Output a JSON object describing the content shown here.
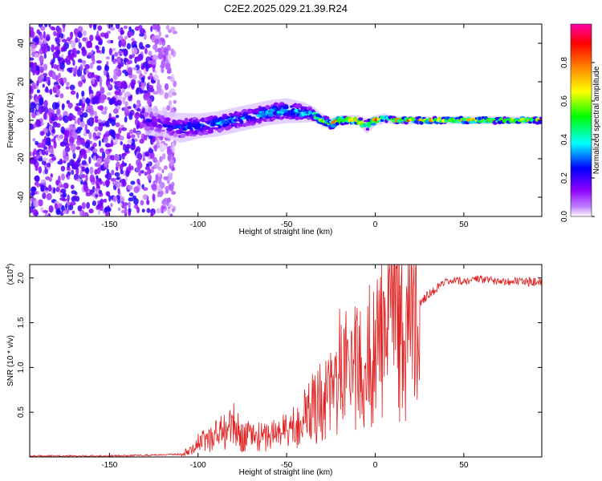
{
  "title": "C2E2.2025.029.21.39.R24",
  "chart_data": [
    {
      "type": "heatmap",
      "xlabel": "Height of straight line (km)",
      "ylabel": "Frequency (Hz)",
      "xlim": [
        -195,
        94
      ],
      "ylim": [
        -50,
        50
      ],
      "x_ticks": [
        -150,
        -100,
        -50,
        0,
        50
      ],
      "x_tick_labels": [
        "-150",
        "-100",
        "-50",
        "0",
        "50"
      ],
      "y_ticks": [
        -40,
        -20,
        0,
        20,
        40
      ],
      "y_tick_labels": [
        "-40",
        "-20",
        "0",
        "20",
        "40"
      ],
      "colorbar": {
        "label": "Normalized spectral amplitude",
        "range": [
          0,
          1
        ],
        "ticks": [
          0.0,
          0.2,
          0.4,
          0.6,
          0.8
        ],
        "tick_labels": [
          "0.0",
          "0.2",
          "0.4",
          "0.6",
          "0.8"
        ],
        "colormap": [
          "#ffffff",
          "#8a00ff",
          "#0000ff",
          "#00ffff",
          "#00ff00",
          "#ffff00",
          "#ff8000",
          "#ff0000",
          "#ff00aa"
        ]
      },
      "ridge": {
        "x": [
          -130,
          -120,
          -110,
          -100,
          -90,
          -80,
          -70,
          -60,
          -50,
          -40,
          -35,
          -30,
          -25,
          -20,
          -15,
          -10,
          -5,
          0,
          5,
          10,
          20,
          40,
          60,
          80,
          94
        ],
        "center_hz": [
          0,
          -2,
          -4,
          -3,
          -2,
          0,
          2,
          4,
          5,
          4,
          3,
          0,
          -2,
          0,
          0,
          0,
          -3,
          0,
          1,
          0,
          0,
          0,
          0,
          0,
          0
        ],
        "halfwidth_hz": [
          6,
          5,
          6,
          5,
          5,
          5,
          5,
          5,
          5,
          4,
          3,
          2.5,
          2.5,
          2,
          2,
          2,
          3,
          2,
          2,
          1.5,
          1.5,
          1.5,
          1.5,
          1.5,
          1.5
        ],
        "peak_amplitude": [
          0.2,
          0.25,
          0.3,
          0.35,
          0.35,
          0.35,
          0.35,
          0.4,
          0.4,
          0.45,
          0.5,
          0.6,
          0.65,
          0.95,
          0.9,
          0.95,
          0.55,
          0.95,
          0.6,
          0.7,
          0.9,
          0.75,
          0.75,
          0.75,
          0.75
        ]
      },
      "noise_region_x": [
        -195,
        -125
      ]
    },
    {
      "type": "line",
      "xlabel": "Height of straight line (km)",
      "ylabel": "SNR (10 * v/v)",
      "y_multiplier_label": "(x10",
      "y_multiplier_exp": "4",
      "y_multiplier_close": ")",
      "xlim": [
        -195,
        94
      ],
      "ylim": [
        0,
        2.15
      ],
      "x_ticks": [
        -150,
        -100,
        -50,
        0,
        50
      ],
      "x_tick_labels": [
        "-150",
        "-100",
        "-50",
        "0",
        "50"
      ],
      "y_ticks": [
        0.5,
        1.0,
        1.5,
        2.0
      ],
      "y_tick_labels": [
        "0.5",
        "1.0",
        "1.5",
        "2.0"
      ],
      "line_color": "#e02020",
      "series": [
        {
          "x": [
            -195,
            -150,
            -130,
            -110,
            -105,
            -100,
            -95,
            -90,
            -85,
            -80,
            -75,
            -70,
            -65,
            -60,
            -55,
            -50,
            -45,
            -40,
            -35,
            -30,
            -25,
            -20,
            -15,
            -10,
            -5,
            0,
            5,
            10,
            15,
            20,
            25,
            30,
            40,
            50,
            60,
            70,
            80,
            94
          ],
          "values": [
            0.01,
            0.01,
            0.02,
            0.03,
            0.08,
            0.15,
            0.2,
            0.25,
            0.3,
            0.35,
            0.22,
            0.25,
            0.22,
            0.24,
            0.28,
            0.3,
            0.35,
            0.45,
            0.55,
            0.65,
            0.75,
            0.95,
            1.1,
            0.95,
            1.2,
            1.4,
            1.3,
            1.45,
            1.55,
            1.62,
            1.72,
            1.82,
            1.95,
            1.97,
            1.98,
            1.97,
            1.96,
            1.95
          ]
        }
      ]
    }
  ]
}
